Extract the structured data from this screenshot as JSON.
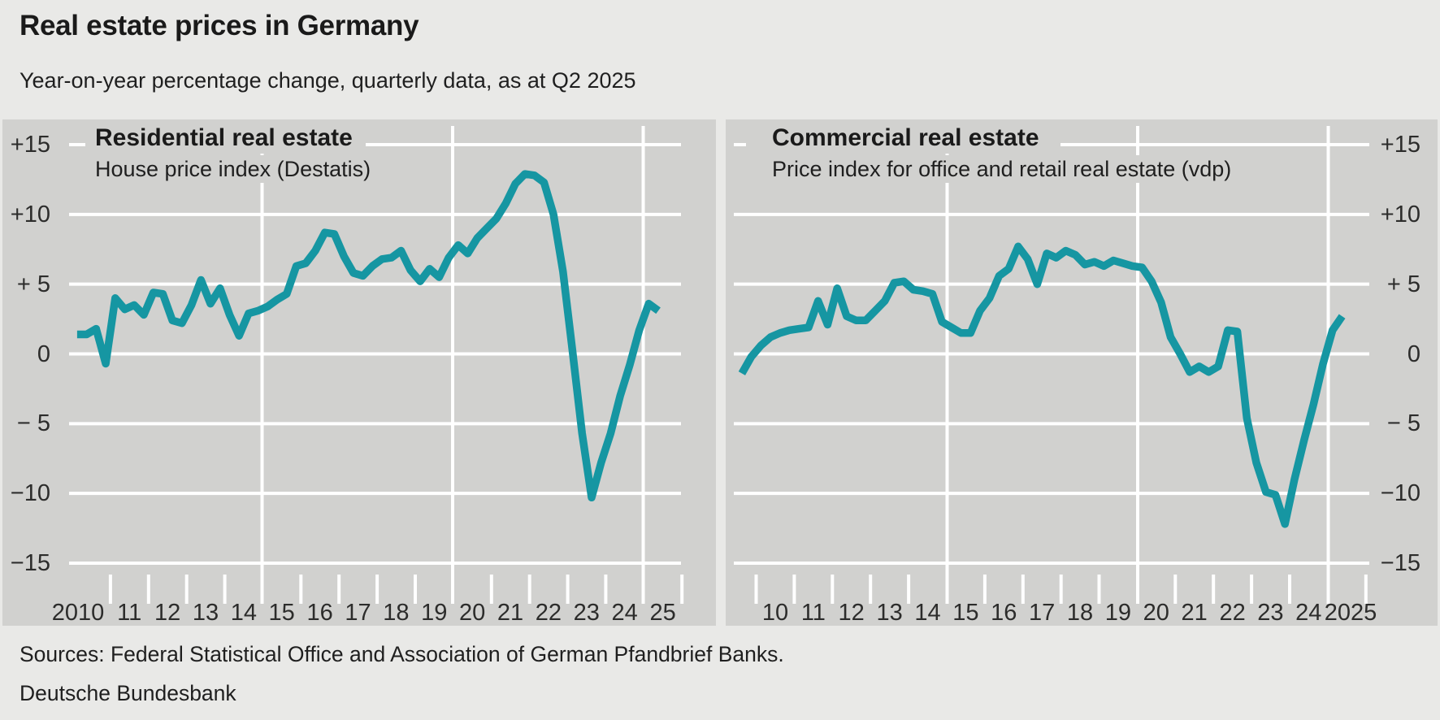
{
  "page": {
    "title": "Real estate prices in Germany",
    "subtitle": "Year-on-year percentage change, quarterly data, as at Q2 2025",
    "source_line": "Sources: Federal Statistical Office and Association of German Pfandbrief Banks.",
    "attribution": "Deutsche Bundesbank"
  },
  "colors": {
    "line": "#1696a2",
    "panel": "#d1d1cf",
    "background": "#e9e9e7",
    "gridline": "#ffffff",
    "text": "#1a1a1a"
  },
  "chart_data": [
    {
      "type": "line",
      "title": "Residential real estate",
      "subtitle": "House price index (Destatis)",
      "unit": "Year-on-year percentage change, quarterly",
      "start": "2010-Q1",
      "end": "2025-Q2",
      "ylim": [
        -15,
        15
      ],
      "grid": true,
      "legend_position": "none",
      "y_axis_side": "left",
      "y_ticks": [
        15,
        10,
        5,
        0,
        -5,
        -10,
        -15
      ],
      "y_tick_labels": [
        "+15",
        "+10",
        "+ 5",
        "0",
        "− 5",
        "−10",
        "−15"
      ],
      "x_tick_labels": [
        "2010",
        "11",
        "12",
        "13",
        "14",
        "15",
        "16",
        "17",
        "18",
        "19",
        "20",
        "21",
        "22",
        "23",
        "24",
        "25"
      ],
      "series": [
        {
          "name": "House price index (Destatis)",
          "values": [
            1.4,
            1.4,
            1.8,
            -0.7,
            4.0,
            3.2,
            3.5,
            2.8,
            4.4,
            4.3,
            2.4,
            2.2,
            3.5,
            5.3,
            3.6,
            4.7,
            2.8,
            1.3,
            2.9,
            3.1,
            3.4,
            3.9,
            4.3,
            6.3,
            6.5,
            7.4,
            8.7,
            8.6,
            7.0,
            5.8,
            5.6,
            6.3,
            6.8,
            6.9,
            7.4,
            6.0,
            5.2,
            6.1,
            5.5,
            6.9,
            7.8,
            7.2,
            8.3,
            9.0,
            9.7,
            10.8,
            12.2,
            12.9,
            12.8,
            12.3,
            10.0,
            5.9,
            0.2,
            -5.7,
            -10.3,
            -7.8,
            -5.7,
            -3.0,
            -0.8,
            1.7,
            3.6,
            3.1
          ]
        }
      ]
    },
    {
      "type": "line",
      "title": "Commercial real estate",
      "subtitle": "Price index for office and retail real estate (vdp)",
      "unit": "Year-on-year percentage change, quarterly",
      "start": "2009-Q3",
      "end": "2025-Q2",
      "ylim": [
        -15,
        15
      ],
      "grid": true,
      "legend_position": "none",
      "y_axis_side": "right",
      "y_ticks": [
        15,
        10,
        5,
        0,
        -5,
        -10,
        -15
      ],
      "y_tick_labels": [
        "+15",
        "+10",
        "+ 5",
        "0",
        "− 5",
        "−10",
        "−15"
      ],
      "x_tick_labels": [
        "10",
        "11",
        "12",
        "13",
        "14",
        "15",
        "16",
        "17",
        "18",
        "19",
        "20",
        "21",
        "22",
        "23",
        "24",
        "2025"
      ],
      "series": [
        {
          "name": "Price index for office and retail real estate (vdp)",
          "values": [
            -1.4,
            -0.2,
            0.6,
            1.2,
            1.5,
            1.7,
            1.8,
            1.9,
            3.8,
            2.1,
            4.7,
            2.7,
            2.4,
            2.4,
            3.1,
            3.8,
            5.1,
            5.2,
            4.6,
            4.5,
            4.3,
            2.3,
            1.9,
            1.5,
            1.5,
            3.1,
            4.0,
            5.6,
            6.1,
            7.7,
            6.8,
            5.0,
            7.2,
            6.9,
            7.4,
            7.1,
            6.4,
            6.6,
            6.3,
            6.7,
            6.5,
            6.3,
            6.2,
            5.2,
            3.7,
            1.2,
            0.0,
            -1.3,
            -0.9,
            -1.3,
            -0.9,
            1.7,
            1.6,
            -4.6,
            -7.8,
            -9.9,
            -10.1,
            -12.2,
            -9.0,
            -6.2,
            -3.6,
            -0.7,
            1.7,
            2.7
          ]
        }
      ]
    }
  ]
}
